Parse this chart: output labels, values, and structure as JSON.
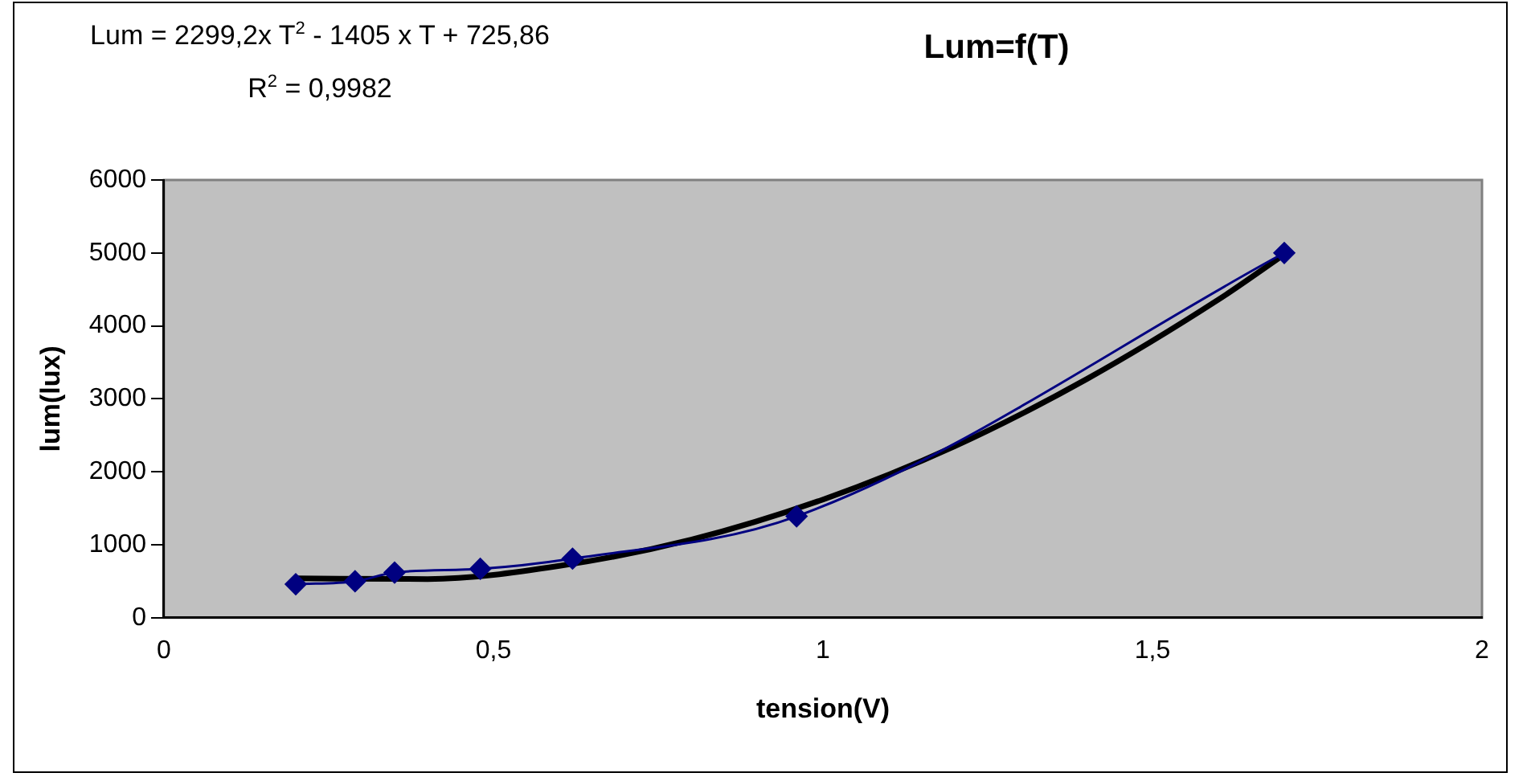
{
  "chart_data": {
    "type": "line",
    "title": "Lum=f(T)",
    "xlabel": "tension(V)",
    "ylabel": "lum(lux)",
    "annotations": [
      "Lum = 2299,2x T$^{2}$ - 1405 x T + 725,86",
      "R$^{2}$ = 0,9982"
    ],
    "xlim": [
      0,
      2
    ],
    "xticks": [
      0,
      {
        "value": 0.5,
        "label": "0,5"
      },
      1,
      {
        "value": 1.5,
        "label": "1,5"
      },
      2
    ],
    "ylim": [
      0,
      6000
    ],
    "yticks": [
      0,
      1000,
      2000,
      3000,
      4000,
      5000,
      6000
    ],
    "grid": false,
    "legend": false,
    "series": [
      {
        "color": "#000080",
        "marker": "diamond",
        "x": [
          0.2,
          0.29,
          0.35,
          0.48,
          0.62,
          0.96,
          1.7
        ],
        "values": [
          460,
          500,
          620,
          670,
          810,
          1390,
          5000
        ]
      },
      {
        "type": "line",
        "color": "#000000",
        "marker": "none",
        "x": [
          0.2,
          0.4,
          0.6,
          0.8,
          1.0,
          1.2,
          1.4,
          1.6,
          1.7
        ],
        "values": [
          540,
          530,
          710,
          1070,
          1620,
          2350,
          3270,
          4360,
          4980
        ]
      }
    ]
  }
}
